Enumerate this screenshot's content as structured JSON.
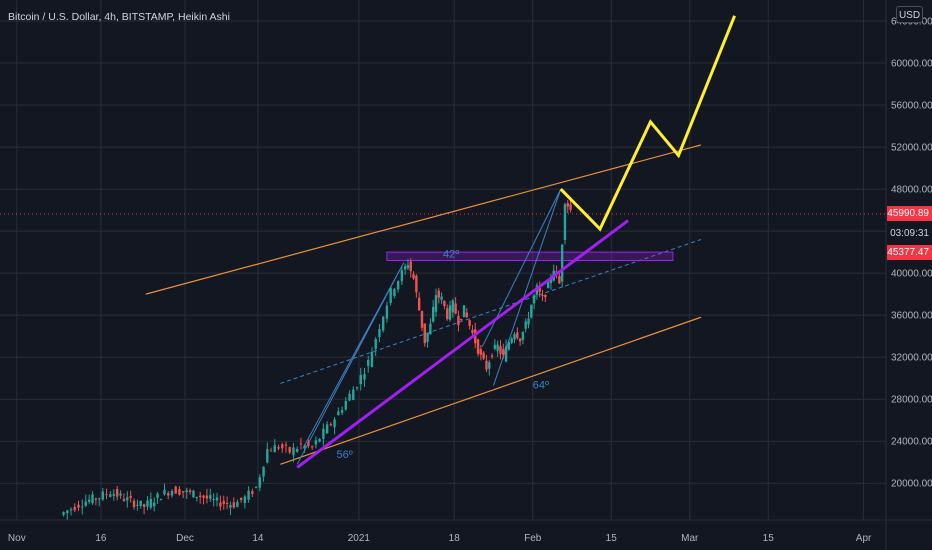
{
  "title": "Bitcoin / U.S. Dollar, 4h, BITSTAMP, Heikin Ashi",
  "currency_button": "USD",
  "price_tags": {
    "last_price": "45990.89",
    "countdown": "03:09:31",
    "second_price": "45377.47"
  },
  "colors": {
    "background": "#131722",
    "grid": "#2a2e39",
    "up_candle": "#26a69a",
    "down_candle": "#ef5350",
    "channel": "#e8923a",
    "trendline": "#a020f0",
    "projection": "#ffee33",
    "fib": "#3b82c4",
    "price_tag_red": "#f23645"
  },
  "chart_data": {
    "type": "candlestick",
    "title": "Bitcoin / U.S. Dollar, 4h, BITSTAMP, Heikin Ashi",
    "y_ticks": [
      "20000.00",
      "24000.00",
      "28000.00",
      "32000.00",
      "36000.00",
      "40000.00",
      "44000.00",
      "48000.00",
      "52000.00",
      "56000.00",
      "60000.00",
      "64000.00"
    ],
    "y_tick_values": [
      20000,
      24000,
      28000,
      32000,
      36000,
      40000,
      44000,
      48000,
      52000,
      56000,
      60000,
      64000
    ],
    "x_ticks": [
      {
        "label": "Nov",
        "day": 0
      },
      {
        "label": "16",
        "day": 15
      },
      {
        "label": "Dec",
        "day": 30
      },
      {
        "label": "14",
        "day": 43
      },
      {
        "label": "2021",
        "day": 61
      },
      {
        "label": "18",
        "day": 78
      },
      {
        "label": "Feb",
        "day": 92
      },
      {
        "label": "15",
        "day": 106
      },
      {
        "label": "Mar",
        "day": 120
      },
      {
        "label": "15",
        "day": 134
      },
      {
        "label": "Apr",
        "day": 151
      }
    ],
    "ylim": [
      16500,
      66000
    ],
    "xlim": [
      -3,
      155
    ],
    "price_path": [
      [
        8,
        17000
      ],
      [
        12,
        18200
      ],
      [
        15,
        18700
      ],
      [
        17,
        19200
      ],
      [
        20,
        18400
      ],
      [
        23,
        17800
      ],
      [
        26,
        18900
      ],
      [
        28,
        19400
      ],
      [
        30,
        19200
      ],
      [
        33,
        18800
      ],
      [
        36,
        18200
      ],
      [
        39,
        18000
      ],
      [
        41,
        18600
      ],
      [
        43,
        19600
      ],
      [
        45,
        23200
      ],
      [
        47,
        23500
      ],
      [
        49,
        23000
      ],
      [
        51,
        23600
      ],
      [
        53,
        23400
      ],
      [
        55,
        24800
      ],
      [
        57,
        26200
      ],
      [
        59,
        27800
      ],
      [
        61,
        29500
      ],
      [
        63,
        31500
      ],
      [
        65,
        35000
      ],
      [
        67,
        38200
      ],
      [
        69,
        40000
      ],
      [
        70,
        41000
      ],
      [
        71,
        39500
      ],
      [
        72,
        36500
      ],
      [
        73,
        33500
      ],
      [
        74,
        35000
      ],
      [
        75,
        38000
      ],
      [
        76,
        37500
      ],
      [
        77,
        36000
      ],
      [
        78,
        37000
      ],
      [
        79,
        35500
      ],
      [
        80,
        36500
      ],
      [
        81,
        35000
      ],
      [
        82,
        33500
      ],
      [
        83,
        32000
      ],
      [
        84,
        31000
      ],
      [
        85,
        32500
      ],
      [
        86,
        33000
      ],
      [
        87,
        32000
      ],
      [
        88,
        33500
      ],
      [
        89,
        34500
      ],
      [
        90,
        33800
      ],
      [
        91,
        35000
      ],
      [
        92,
        37000
      ],
      [
        93,
        38500
      ],
      [
        94,
        37500
      ],
      [
        95,
        38800
      ],
      [
        96,
        40500
      ],
      [
        97,
        39000
      ],
      [
        98,
        47000
      ],
      [
        99,
        46000
      ]
    ],
    "drawings": {
      "upper_channel": [
        [
          23,
          38000
        ],
        [
          122,
          52200
        ]
      ],
      "lower_channel": [
        [
          47,
          21800
        ],
        [
          122,
          35800
        ]
      ],
      "mid_dashed": [
        [
          47,
          29500
        ],
        [
          122,
          43200
        ]
      ],
      "purple_trendline": [
        [
          50,
          21500
        ],
        [
          109,
          45000
        ]
      ],
      "resistance_box": [
        [
          66,
          41200
        ],
        [
          117,
          42000
        ]
      ],
      "projection": [
        [
          97,
          48000
        ],
        [
          104,
          44200
        ],
        [
          113,
          54400
        ],
        [
          118,
          51200
        ],
        [
          128,
          64500
        ]
      ],
      "fib_wedge_1": [
        [
          50,
          21800
        ],
        [
          69,
          41000
        ],
        [
          51,
          23300
        ]
      ],
      "fib_wedge_2": [
        [
          85,
          29300
        ],
        [
          97,
          48000
        ],
        [
          83,
          33000
        ]
      ],
      "angle_labels": [
        {
          "text": "56º",
          "at": [
            57,
            22400
          ]
        },
        {
          "text": "42º",
          "at": [
            76,
            41500
          ]
        },
        {
          "text": "64º",
          "at": [
            92,
            29000
          ]
        }
      ]
    }
  }
}
